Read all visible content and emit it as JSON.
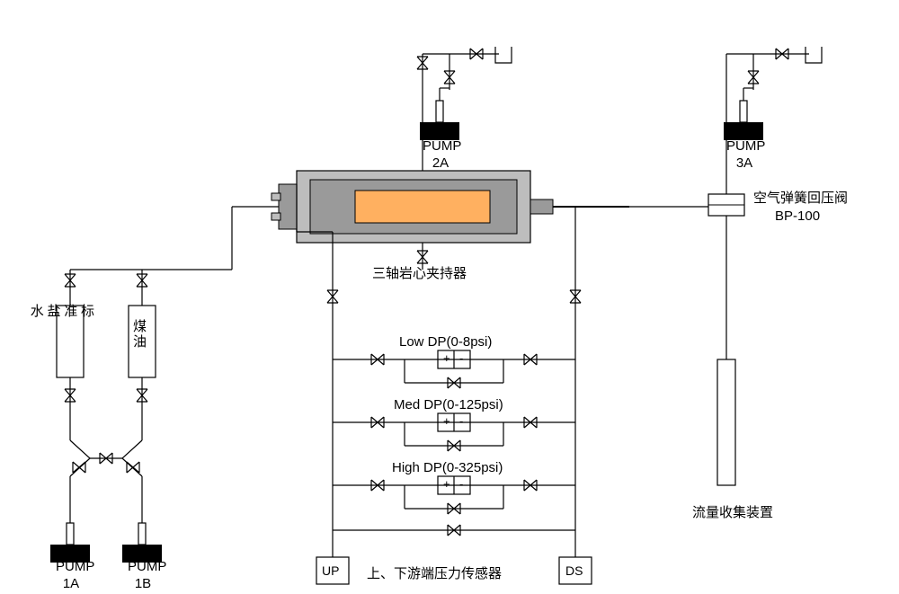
{
  "diagram": {
    "type": "flowchart",
    "background_color": "#ffffff",
    "line_color": "#000000",
    "line_width": 1.2,
    "label_fontsize": 15,
    "pump_labels": {
      "p1a": "PUMP\n1A",
      "p1b": "PUMP\n1B",
      "p2a": "PUMP\n2A",
      "p3a": "PUMP\n3A"
    },
    "reservoirs": {
      "brine": "标\n准\n盐\n水",
      "kerosene": "煤\n油"
    },
    "core_holder_label": "三轴岩心夹持器",
    "core_holder_fill": "#ffb060",
    "core_holder_shell": "#808080",
    "bpv_label_line1": "空气弹簧回压阀",
    "bpv_label_line2": "BP-100",
    "dp_sensors": {
      "low": {
        "label": "Low DP(0-8psi)",
        "plus": "+",
        "minus": "-"
      },
      "med": {
        "label": "Med DP(0-125psi)",
        "plus": "+",
        "minus": "-"
      },
      "high": {
        "label": "High DP(0-325psi)",
        "plus": "+",
        "minus": "-"
      }
    },
    "ud_sensor_label": "上、下游端压力传感器",
    "up_label": "UP",
    "ds_label": "DS",
    "collector_label": "流量收集装置"
  }
}
